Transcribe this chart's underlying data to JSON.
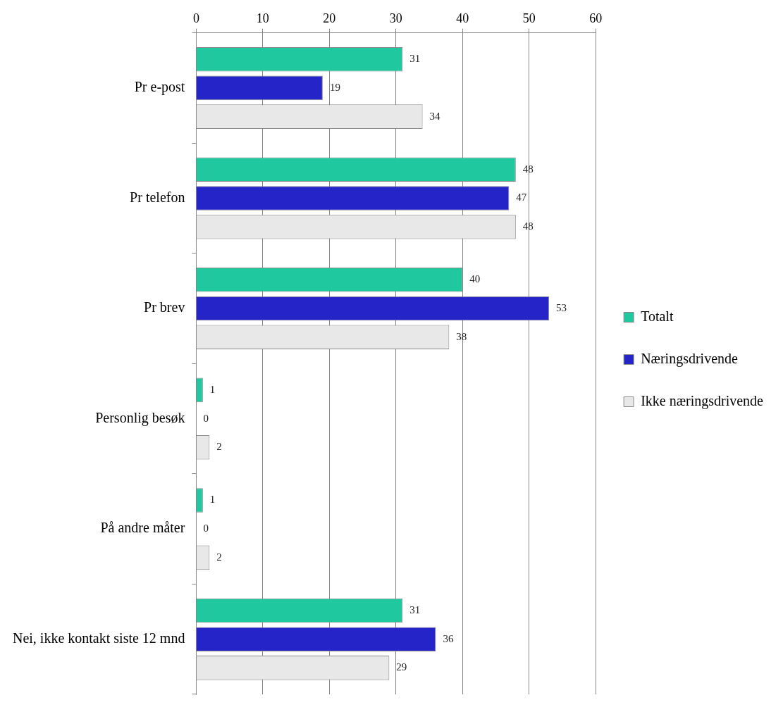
{
  "chart_data": {
    "type": "bar",
    "orientation": "horizontal",
    "categories": [
      "Pr e-post",
      "Pr telefon",
      "Pr brev",
      "Personlig besøk",
      "På andre måter",
      "Nei, ikke kontakt siste 12 mnd"
    ],
    "series": [
      {
        "name": "Totalt",
        "color": "#20c8a0",
        "values": [
          31,
          48,
          40,
          1,
          1,
          31
        ]
      },
      {
        "name": "Næringsdrivende",
        "color": "#2424c8",
        "values": [
          19,
          47,
          53,
          0,
          0,
          36
        ]
      },
      {
        "name": "Ikke næringsdrivende",
        "color": "#e8e8e8",
        "values": [
          34,
          48,
          38,
          2,
          2,
          29
        ]
      }
    ],
    "xlim": [
      0,
      60
    ],
    "xticks": [
      0,
      10,
      20,
      30,
      40,
      50,
      60
    ],
    "grid": "x",
    "legend": "right",
    "data_labels": true
  }
}
